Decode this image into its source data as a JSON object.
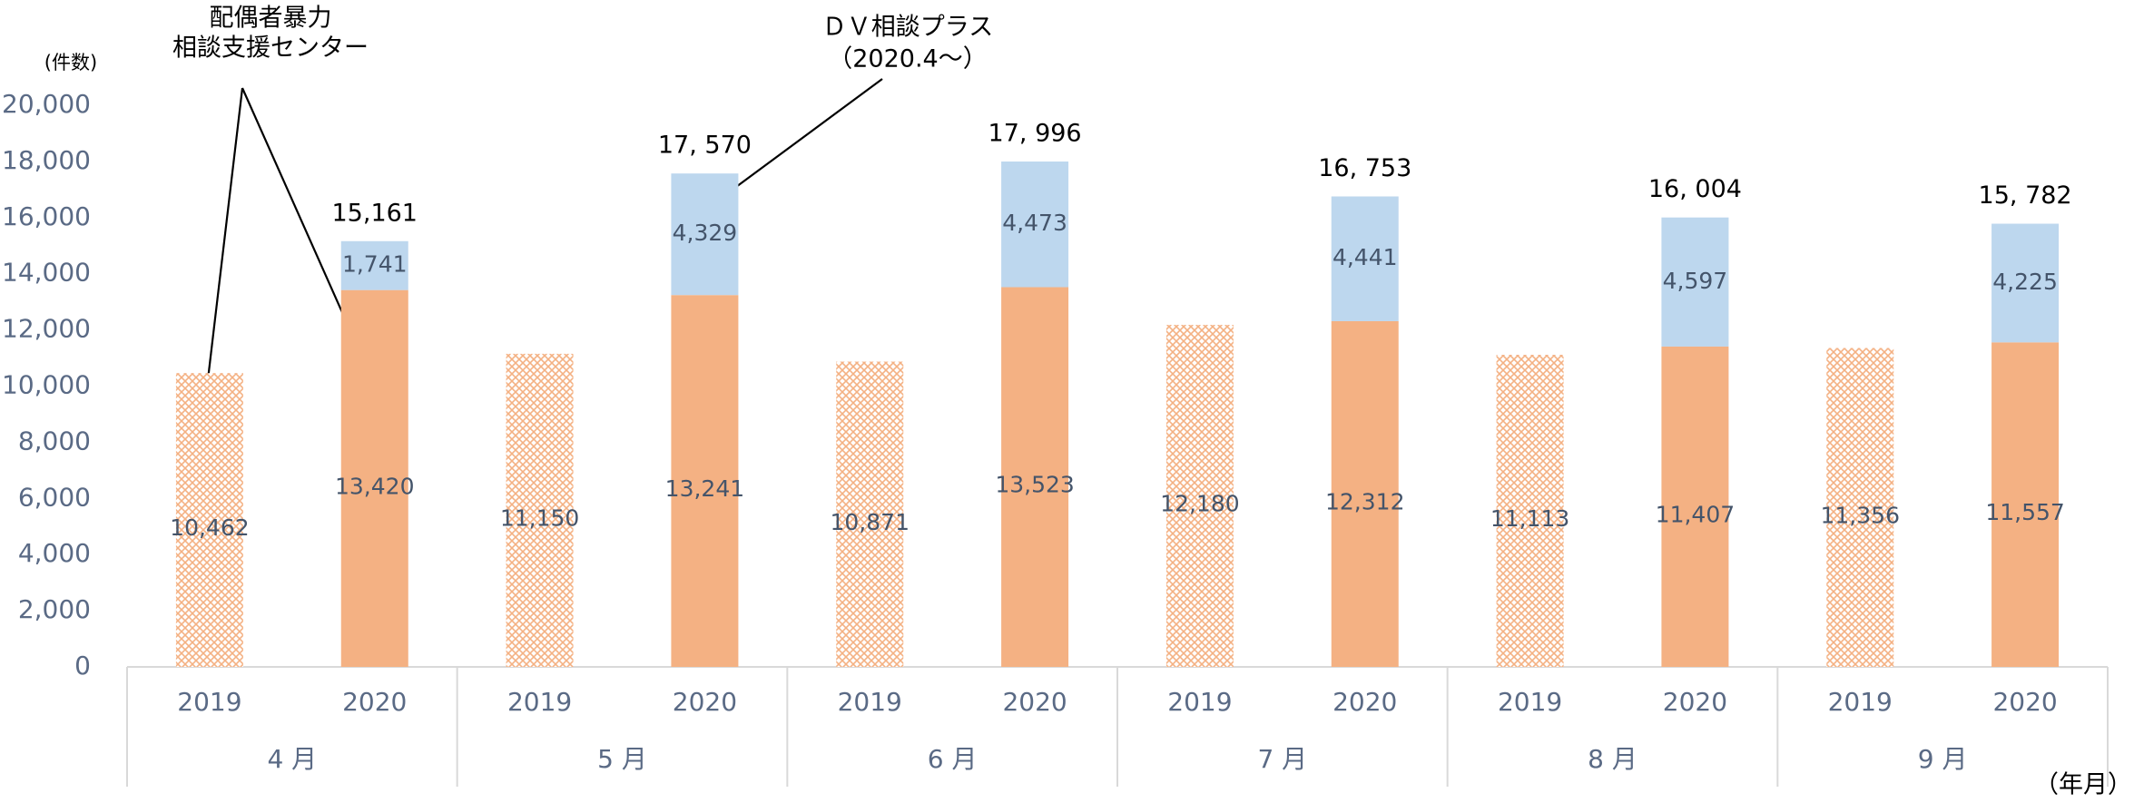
{
  "chart_data": {
    "type": "stacked-bar",
    "y_axis_label": "(件数)",
    "x_axis_label": "（年月）",
    "annotations": [
      {
        "lines": [
          "配偶者暴力",
          "相談支援センター"
        ]
      },
      {
        "lines": [
          "ＤＶ相談プラス",
          "（2020.4～）"
        ]
      }
    ],
    "categories": [
      "2019",
      "2020",
      "2019",
      "2020",
      "2019",
      "2020",
      "2019",
      "2020",
      "2019",
      "2020",
      "2019",
      "2020"
    ],
    "groups": [
      "4 月",
      "5 月",
      "6 月",
      "7 月",
      "8 月",
      "9 月"
    ],
    "hatch": [
      true,
      false,
      true,
      false,
      true,
      false,
      true,
      false,
      true,
      false,
      true,
      false
    ],
    "series": [
      {
        "name": "配偶者暴力相談支援センター",
        "color": "#f4b183",
        "values": [
          10462,
          13420,
          11150,
          13241,
          10871,
          13523,
          12180,
          12312,
          11113,
          11407,
          11356,
          11557
        ],
        "value_labels": [
          "10,462",
          "13,420",
          "11,150",
          "13,241",
          "10,871",
          "13,523",
          "12,180",
          "12,312",
          "11,113",
          "11,407",
          "11,356",
          "11,557"
        ]
      },
      {
        "name": "ＤＶ相談プラス",
        "color": "#bdd7ee",
        "values": [
          null,
          1741,
          null,
          4329,
          null,
          4473,
          null,
          4441,
          null,
          4597,
          null,
          4225
        ],
        "value_labels": [
          null,
          "1,741",
          null,
          "4,329",
          null,
          "4,473",
          null,
          "4,441",
          null,
          "4,597",
          null,
          "4,225"
        ]
      }
    ],
    "totals": {
      "values": [
        null,
        15161,
        null,
        17570,
        null,
        17996,
        null,
        16753,
        null,
        16004,
        null,
        15782
      ],
      "value_labels": [
        null,
        "15,161",
        null,
        "17, 570",
        null,
        "17, 996",
        null,
        "16, 753",
        null,
        "16, 004",
        null,
        "15, 782"
      ]
    },
    "ylim": [
      0,
      20000
    ],
    "yticks": [
      0,
      {
        "value": 2000,
        "label": "2,000"
      },
      {
        "value": 4000,
        "label": "4,000"
      },
      {
        "value": 6000,
        "label": "6,000"
      },
      {
        "value": 8000,
        "label": "8,000"
      },
      {
        "value": 10000,
        "label": "10,000"
      },
      {
        "value": 12000,
        "label": "12,000"
      },
      {
        "value": 14000,
        "label": "14,000"
      },
      {
        "value": 16000,
        "label": "16,000"
      },
      {
        "value": 18000,
        "label": "18,000"
      },
      {
        "value": 20000,
        "label": "20,000"
      }
    ],
    "grid": false
  }
}
